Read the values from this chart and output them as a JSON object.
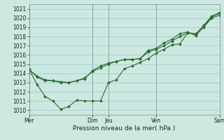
{
  "xlabel": "Pression niveau de la mer( hPa )",
  "ylim": [
    1009.5,
    1021.5
  ],
  "yticks": [
    1010,
    1011,
    1012,
    1013,
    1014,
    1015,
    1016,
    1017,
    1018,
    1019,
    1020,
    1021
  ],
  "bg_color": "#cce8e0",
  "grid_color": "#99cccc",
  "line_color": "#2d6b2d",
  "vline_color": "#336633",
  "xtick_positions": [
    0,
    4,
    5,
    8,
    12
  ],
  "xtick_labels": [
    "Mer",
    "Dim",
    "Jeu",
    "Ven",
    "Sam"
  ],
  "xlim": [
    0,
    12
  ],
  "series1_x": [
    0,
    0.5,
    1.0,
    1.5,
    2.0,
    2.5,
    3.0,
    3.5,
    4.0,
    4.5,
    5.0,
    5.5,
    6.0,
    6.5,
    7.0,
    7.5,
    8.0,
    8.5,
    9.0,
    9.5,
    10.0,
    10.5,
    11.0,
    11.5,
    12.0
  ],
  "series1_y": [
    1014.4,
    1013.7,
    1013.3,
    1013.2,
    1013.1,
    1013.0,
    1013.2,
    1013.4,
    1014.3,
    1014.8,
    1015.1,
    1015.3,
    1015.5,
    1015.5,
    1015.6,
    1016.5,
    1016.7,
    1017.3,
    1017.7,
    1018.3,
    1018.5,
    1018.1,
    1019.0,
    1020.0,
    1020.3
  ],
  "series2_x": [
    0,
    0.5,
    1.0,
    1.5,
    2.0,
    2.5,
    3.0,
    3.5,
    4.0,
    4.5,
    5.0,
    5.5,
    6.0,
    6.5,
    7.0,
    7.5,
    8.0,
    8.5,
    9.0,
    9.5,
    10.0,
    10.5,
    11.0,
    11.5,
    12.0
  ],
  "series2_y": [
    1014.4,
    1012.8,
    1011.5,
    1011.0,
    1010.1,
    1010.4,
    1011.1,
    1011.0,
    1011.0,
    1011.0,
    1013.0,
    1013.3,
    1014.5,
    1014.8,
    1015.2,
    1015.6,
    1016.2,
    1016.6,
    1017.1,
    1017.2,
    1018.4,
    1018.2,
    1019.2,
    1020.2,
    1020.6
  ],
  "series3_x": [
    0,
    0.5,
    1.0,
    1.5,
    2.0,
    2.5,
    3.0,
    3.5,
    4.0,
    4.5,
    5.0,
    5.5,
    6.0,
    6.5,
    7.0,
    7.5,
    8.0,
    8.5,
    9.0,
    9.5,
    10.0,
    10.5,
    11.0,
    11.5,
    12.0
  ],
  "series3_y": [
    1014.4,
    1013.6,
    1013.2,
    1013.2,
    1013.0,
    1013.0,
    1013.2,
    1013.5,
    1014.2,
    1014.6,
    1015.0,
    1015.3,
    1015.5,
    1015.5,
    1015.6,
    1016.3,
    1016.6,
    1017.0,
    1017.5,
    1018.0,
    1018.4,
    1018.3,
    1019.1,
    1020.1,
    1020.5
  ],
  "lw": 0.8,
  "ms": 2.0,
  "tick_fontsize": 5.5,
  "xlabel_fontsize": 6.5
}
